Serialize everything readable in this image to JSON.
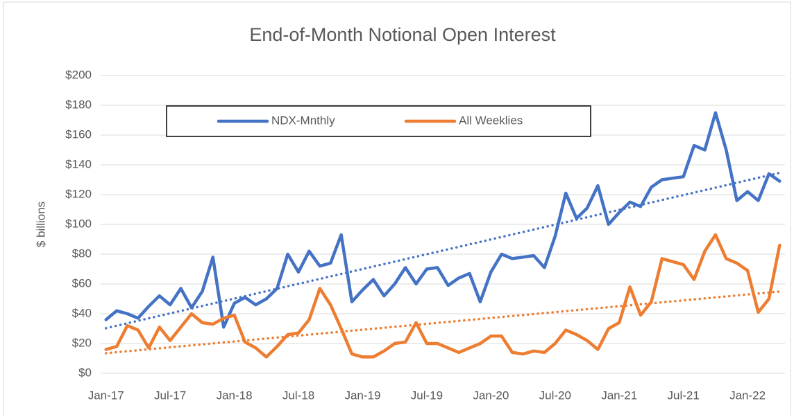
{
  "chart_data": {
    "type": "line",
    "title": "End-of-Month Notional Open Interest",
    "y_label": "$ billions",
    "categories": [
      "Jan-17",
      null,
      null,
      null,
      null,
      null,
      "Jul-17",
      null,
      null,
      null,
      null,
      null,
      "Jan-18",
      null,
      null,
      null,
      null,
      null,
      "Jul-18",
      null,
      null,
      null,
      null,
      null,
      "Jan-19",
      null,
      null,
      null,
      null,
      null,
      "Jul-19",
      null,
      null,
      null,
      null,
      null,
      "Jan-20",
      null,
      null,
      null,
      null,
      null,
      "Jul-20",
      null,
      null,
      null,
      null,
      null,
      "Jan-21",
      null,
      null,
      null,
      null,
      null,
      "Jul-21",
      null,
      null,
      null,
      null,
      null,
      "Jan-22",
      null,
      null,
      null
    ],
    "series": [
      {
        "name": "NDX-Mnthly",
        "color": "#4472c4",
        "values": [
          36,
          42,
          40,
          37,
          45,
          52,
          46,
          57,
          44,
          55,
          78,
          31,
          47,
          51,
          46,
          50,
          57,
          80,
          68,
          82,
          72,
          74,
          93,
          48,
          56,
          63,
          52,
          60,
          71,
          60,
          70,
          71,
          59,
          64,
          67,
          48,
          68,
          80,
          77,
          78,
          79,
          71,
          92,
          121,
          104,
          111,
          126,
          100,
          108,
          115,
          112,
          125,
          130,
          131,
          132,
          153,
          150,
          175,
          150,
          116,
          122,
          116,
          134,
          129
        ]
      },
      {
        "name": "All Weeklies",
        "color": "#ed7d31",
        "values": [
          16,
          18,
          32,
          29,
          17,
          31,
          22,
          31,
          40,
          34,
          33,
          37,
          39,
          21,
          17,
          11,
          18,
          26,
          27,
          36,
          57,
          46,
          30,
          13,
          11,
          11,
          15,
          20,
          21,
          34,
          20,
          20,
          17,
          14,
          17,
          20,
          25,
          25,
          14,
          13,
          15,
          14,
          20,
          29,
          26,
          22,
          16,
          30,
          34,
          58,
          39,
          48,
          77,
          75,
          73,
          63,
          82,
          93,
          77,
          74,
          69,
          41,
          50,
          86
        ]
      }
    ],
    "ylim": [
      0,
      200
    ],
    "yticks": [
      {
        "value": 0,
        "label": "$0"
      },
      {
        "value": 20,
        "label": "$20"
      },
      {
        "value": 40,
        "label": "$40"
      },
      {
        "value": 60,
        "label": "$60"
      },
      {
        "value": 80,
        "label": "$80"
      },
      {
        "value": 100,
        "label": "$100"
      },
      {
        "value": 120,
        "label": "$120"
      },
      {
        "value": 140,
        "label": "$140"
      },
      {
        "value": 160,
        "label": "$160"
      },
      {
        "value": 180,
        "label": "$180"
      },
      {
        "value": 200,
        "label": "$200"
      }
    ],
    "grid": true,
    "trendline": true,
    "legend": "top"
  }
}
